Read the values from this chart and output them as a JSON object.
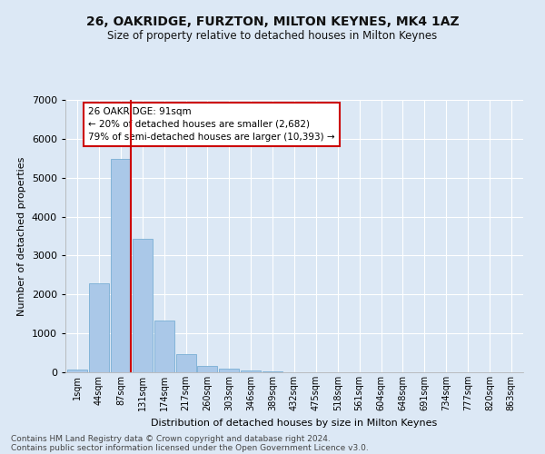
{
  "title": "26, OAKRIDGE, FURZTON, MILTON KEYNES, MK4 1AZ",
  "subtitle": "Size of property relative to detached houses in Milton Keynes",
  "xlabel": "Distribution of detached houses by size in Milton Keynes",
  "ylabel": "Number of detached properties",
  "footer_line1": "Contains HM Land Registry data © Crown copyright and database right 2024.",
  "footer_line2": "Contains public sector information licensed under the Open Government Licence v3.0.",
  "annotation_title": "26 OAKRIDGE: 91sqm",
  "annotation_line1": "← 20% of detached houses are smaller (2,682)",
  "annotation_line2": "79% of semi-detached houses are larger (10,393) →",
  "bar_categories": [
    "1sqm",
    "44sqm",
    "87sqm",
    "131sqm",
    "174sqm",
    "217sqm",
    "260sqm",
    "303sqm",
    "346sqm",
    "389sqm",
    "432sqm",
    "475sqm",
    "518sqm",
    "561sqm",
    "604sqm",
    "648sqm",
    "691sqm",
    "734sqm",
    "777sqm",
    "820sqm",
    "863sqm"
  ],
  "bar_values": [
    80,
    2280,
    5480,
    3430,
    1320,
    470,
    155,
    85,
    55,
    35,
    0,
    0,
    0,
    0,
    0,
    0,
    0,
    0,
    0,
    0,
    0
  ],
  "bar_color": "#aac8e8",
  "bar_edge_color": "#7aafd4",
  "vline_color": "#cc0000",
  "vline_x_index": 2,
  "annotation_box_color": "#ffffff",
  "annotation_box_edge": "#cc0000",
  "ylim": [
    0,
    7000
  ],
  "yticks": [
    0,
    1000,
    2000,
    3000,
    4000,
    5000,
    6000,
    7000
  ],
  "background_color": "#dce8f5",
  "grid_color": "#ffffff",
  "title_fontsize": 10,
  "subtitle_fontsize": 8.5,
  "axis_label_fontsize": 8,
  "tick_fontsize": 7,
  "footer_fontsize": 6.5
}
